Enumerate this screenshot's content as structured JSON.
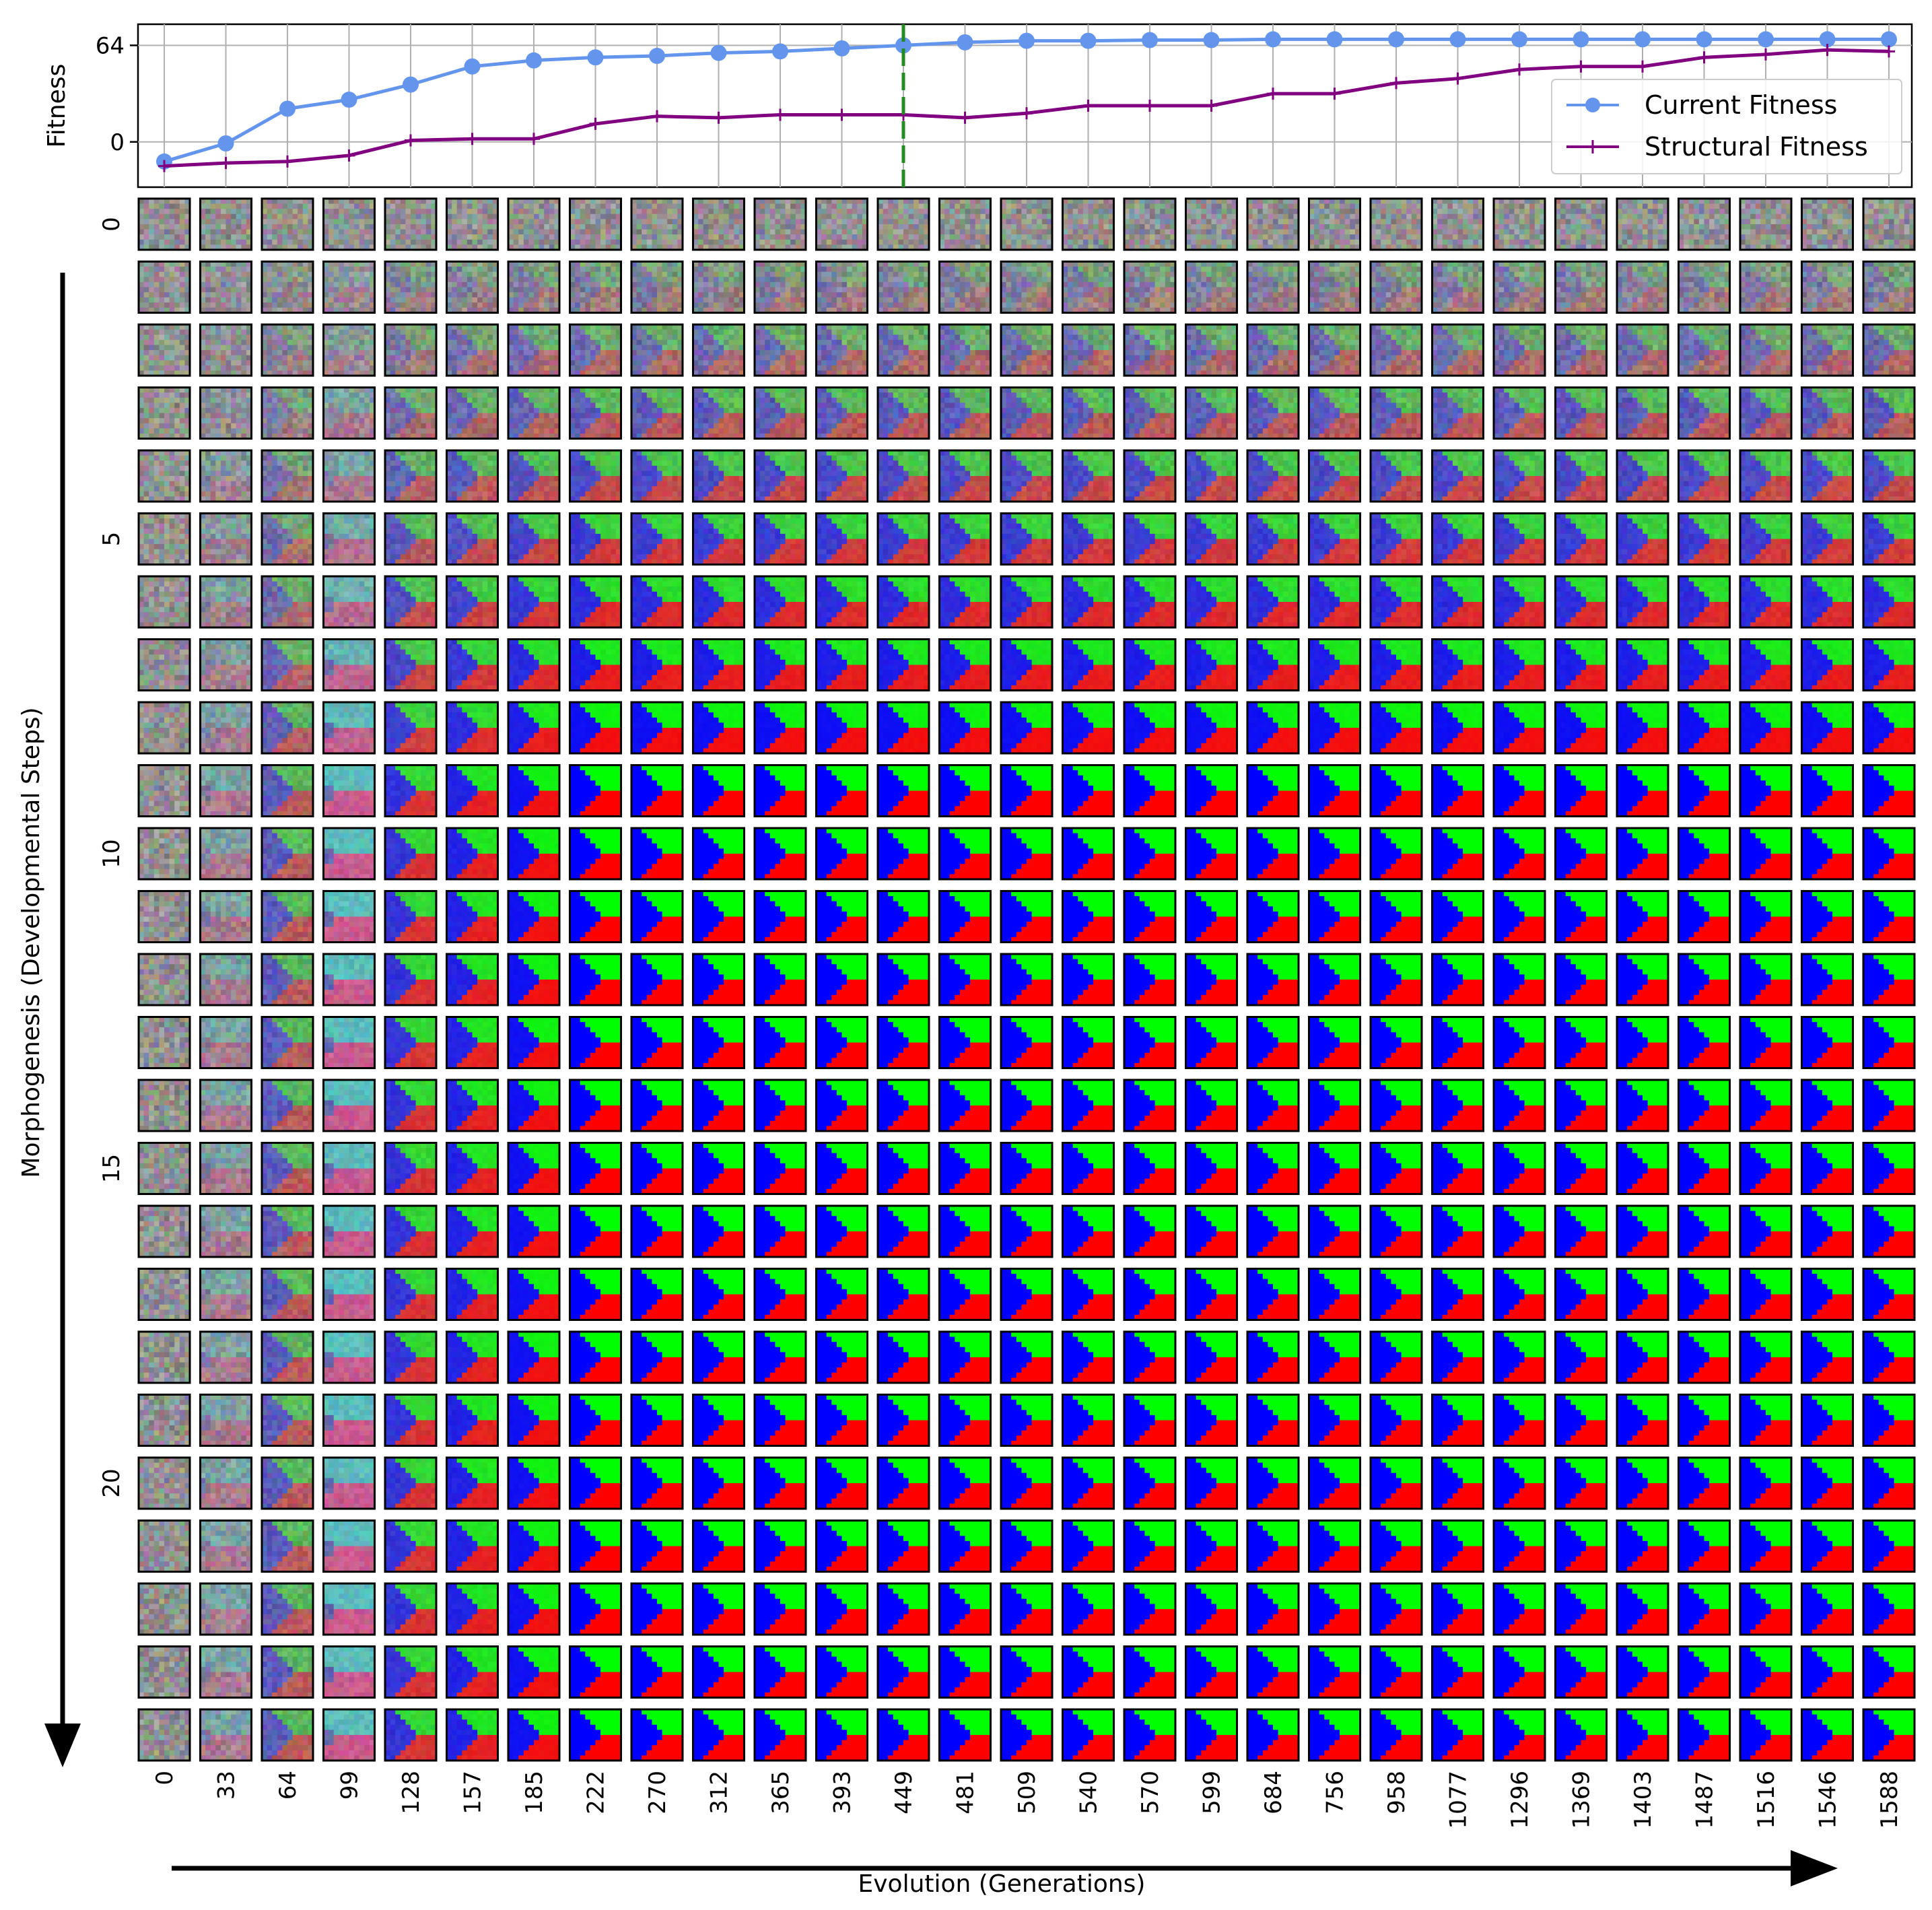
{
  "chart_data": {
    "type": "line",
    "top_plot": {
      "ylabel": "Fitness",
      "yticks": [
        "64",
        "0"
      ],
      "ytick_values": [
        64,
        0
      ],
      "ylim": [
        -30,
        78
      ],
      "grid": true,
      "x": [
        0,
        33,
        64,
        99,
        128,
        157,
        185,
        222,
        270,
        312,
        365,
        393,
        449,
        481,
        509,
        540,
        570,
        599,
        684,
        756,
        958,
        1077,
        1296,
        1369,
        1403,
        1487,
        1516,
        1546,
        1588
      ],
      "series": [
        {
          "name": "Current Fitness",
          "color": "#6495ED",
          "marker": "circle",
          "values": [
            -13,
            -1,
            22,
            28,
            38,
            50,
            54,
            56,
            57,
            59,
            60,
            62,
            64,
            66,
            67,
            67,
            67.5,
            67.5,
            68,
            68,
            68,
            68,
            68,
            68,
            68,
            68,
            68,
            68,
            68
          ]
        },
        {
          "name": "Structural Fitness",
          "color": "#800080",
          "marker": "plus",
          "values": [
            -16,
            -14,
            -13,
            -9,
            1,
            2,
            2,
            12,
            17,
            16,
            18,
            18,
            18,
            16,
            19,
            24,
            24,
            24,
            32,
            32,
            39,
            42,
            48,
            50,
            50,
            56,
            58,
            61,
            60
          ]
        }
      ],
      "vline": {
        "x": 449,
        "color": "#228B22",
        "style": "dashed"
      },
      "legend": [
        "Current Fitness",
        "Structural Fitness"
      ],
      "legend_position": "center-right"
    },
    "grid_plot": {
      "type": "image-grid",
      "xlabel": "Evolution (Generations)",
      "ylabel": "Morphogenesis (Developmental Steps)",
      "generations": [
        "0",
        "33",
        "64",
        "99",
        "128",
        "157",
        "185",
        "222",
        "270",
        "312",
        "365",
        "393",
        "449",
        "481",
        "509",
        "540",
        "570",
        "599",
        "684",
        "756",
        "958",
        "1077",
        "1296",
        "1369",
        "1403",
        "1487",
        "1516",
        "1546",
        "1588"
      ],
      "step_ticks": [
        "0",
        "5",
        "10",
        "15",
        "20"
      ],
      "step_tick_values": [
        0,
        5,
        10,
        15,
        20
      ],
      "num_steps": 25,
      "target_pattern": "green top-right, blue left wedge, red bottom-right",
      "colors": {
        "green": "#00ff00",
        "blue": "#0000ff",
        "red": "#ff0000",
        "noise_gray": "#8a8a8a",
        "cyan": "#22e8e8",
        "pink": "#ff2a8a"
      }
    }
  }
}
